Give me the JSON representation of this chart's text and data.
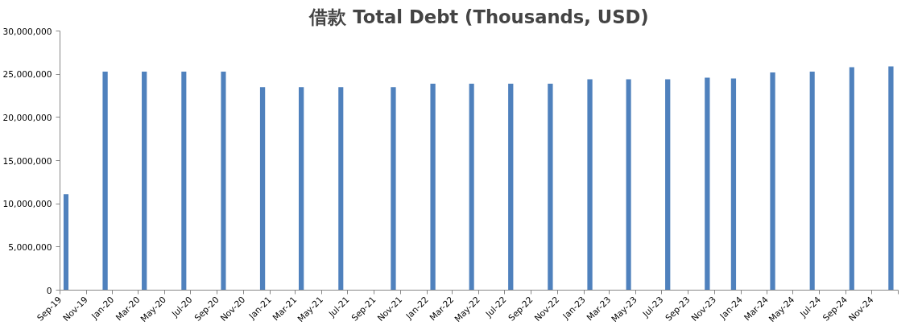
{
  "chart_data": {
    "type": "bar",
    "title": "借款 Total Debt (Thousands, USD)",
    "x": [
      "2019-09-15",
      "2019-12-15",
      "2020-03-15",
      "2020-06-15",
      "2020-09-15",
      "2020-12-15",
      "2021-03-15",
      "2021-06-15",
      "2021-10-15",
      "2022-01-15",
      "2022-04-15",
      "2022-07-15",
      "2022-10-15",
      "2023-01-15",
      "2023-04-15",
      "2023-07-15",
      "2023-10-15",
      "2023-12-15",
      "2024-03-15",
      "2024-06-15",
      "2024-09-15",
      "2024-12-15"
    ],
    "values": [
      11100000,
      25300000,
      25300000,
      25300000,
      25300000,
      23500000,
      23500000,
      23500000,
      23500000,
      23900000,
      23900000,
      23900000,
      23900000,
      24400000,
      24400000,
      24400000,
      24600000,
      24500000,
      25200000,
      25300000,
      25800000,
      25900000
    ],
    "color": "#4f81bd",
    "ylim": [
      0,
      30000000
    ],
    "yticks": [
      {
        "value": 0,
        "label": "0"
      },
      {
        "value": 5000000,
        "label": "5,000,000"
      },
      {
        "value": 10000000,
        "label": "10,000,000"
      },
      {
        "value": 15000000,
        "label": "15,000,000"
      },
      {
        "value": 20000000,
        "label": "20,000,000"
      },
      {
        "value": 25000000,
        "label": "25,000,000"
      },
      {
        "value": 30000000,
        "label": "30,000,000"
      }
    ],
    "xlim": [
      "2019-09",
      "2025-01"
    ],
    "xticks": [
      {
        "value": "2019-09",
        "label": "Sep-19"
      },
      {
        "value": "2019-11",
        "label": "Nov-19"
      },
      {
        "value": "2020-01",
        "label": "Jan-20"
      },
      {
        "value": "2020-03",
        "label": "Mar-20"
      },
      {
        "value": "2020-05",
        "label": "May-20"
      },
      {
        "value": "2020-07",
        "label": "Jul-20"
      },
      {
        "value": "2020-09",
        "label": "Sep-20"
      },
      {
        "value": "2020-11",
        "label": "Nov-20"
      },
      {
        "value": "2021-01",
        "label": "Jan-21"
      },
      {
        "value": "2021-03",
        "label": "Mar-21"
      },
      {
        "value": "2021-05",
        "label": "May-21"
      },
      {
        "value": "2021-07",
        "label": "Jul-21"
      },
      {
        "value": "2021-09",
        "label": "Sep-21"
      },
      {
        "value": "2021-11",
        "label": "Nov-21"
      },
      {
        "value": "2022-01",
        "label": "Jan-22"
      },
      {
        "value": "2022-03",
        "label": "Mar-22"
      },
      {
        "value": "2022-05",
        "label": "May-22"
      },
      {
        "value": "2022-07",
        "label": "Jul-22"
      },
      {
        "value": "2022-09",
        "label": "Sep-22"
      },
      {
        "value": "2022-11",
        "label": "Nov-22"
      },
      {
        "value": "2023-01",
        "label": "Jan-23"
      },
      {
        "value": "2023-03",
        "label": "Mar-23"
      },
      {
        "value": "2023-05",
        "label": "May-23"
      },
      {
        "value": "2023-07",
        "label": "Jul-23"
      },
      {
        "value": "2023-09",
        "label": "Sep-23"
      },
      {
        "value": "2023-11",
        "label": "Nov-23"
      },
      {
        "value": "2024-01",
        "label": "Jan-24"
      },
      {
        "value": "2024-03",
        "label": "Mar-24"
      },
      {
        "value": "2024-05",
        "label": "May-24"
      },
      {
        "value": "2024-07",
        "label": "Jul-24"
      },
      {
        "value": "2024-09",
        "label": "Sep-24"
      },
      {
        "value": "2024-11",
        "label": "Nov-24"
      },
      {
        "value": "2025-01",
        "label": null
      }
    ],
    "grid": false
  }
}
